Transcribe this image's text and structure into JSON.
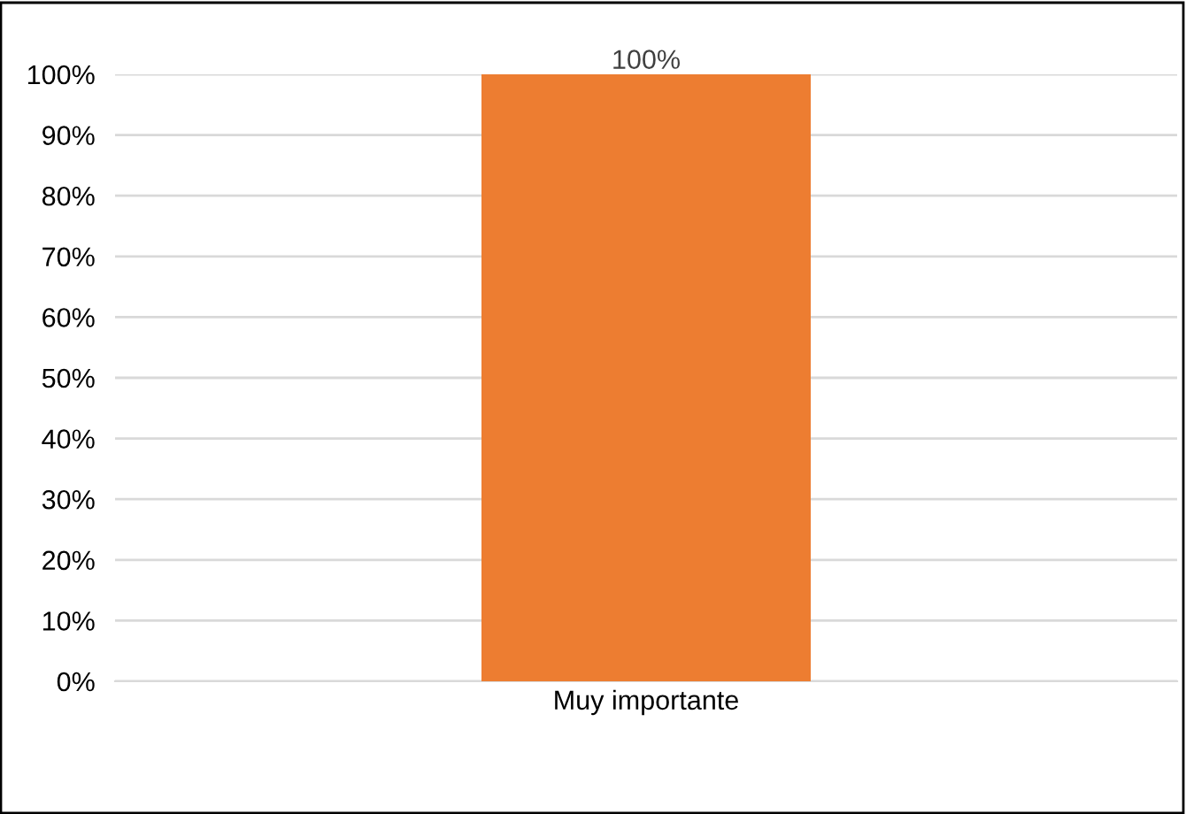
{
  "chart_data": {
    "type": "bar",
    "categories": [
      "Muy importante"
    ],
    "values": [
      100
    ],
    "color": "#ed7d31",
    "value_labels": [
      "100%"
    ],
    "ylim": [
      0,
      100
    ],
    "yticks": [
      {
        "value": 0,
        "label": "0%"
      },
      {
        "value": 10,
        "label": "10%"
      },
      {
        "value": 20,
        "label": "20%"
      },
      {
        "value": 30,
        "label": "30%"
      },
      {
        "value": 40,
        "label": "40%"
      },
      {
        "value": 50,
        "label": "50%"
      },
      {
        "value": 60,
        "label": "60%"
      },
      {
        "value": 70,
        "label": "70%"
      },
      {
        "value": 80,
        "label": "80%"
      },
      {
        "value": 90,
        "label": "90%"
      },
      {
        "value": 100,
        "label": "100%"
      }
    ],
    "grid": "y",
    "legend": false
  }
}
